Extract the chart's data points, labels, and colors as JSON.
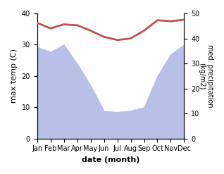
{
  "months": [
    "Jan",
    "Feb",
    "Mar",
    "Apr",
    "May",
    "Jun",
    "Jul",
    "Aug",
    "Sep",
    "Oct",
    "Nov",
    "Dec"
  ],
  "month_indices": [
    0,
    1,
    2,
    3,
    4,
    5,
    6,
    7,
    8,
    9,
    10,
    11
  ],
  "temperature": [
    37.0,
    35.2,
    36.5,
    36.2,
    34.5,
    32.5,
    31.5,
    32.0,
    34.5,
    37.8,
    37.5,
    38.0
  ],
  "precipitation": [
    190,
    180,
    195,
    155,
    110,
    57,
    55,
    58,
    65,
    130,
    175,
    195
  ],
  "temp_color": "#c0504d",
  "precip_fill_color": "#b8c0e8",
  "left_ylim": [
    0,
    40
  ],
  "right_ylim": [
    0,
    260
  ],
  "left_yticks": [
    0,
    10,
    20,
    30,
    40
  ],
  "right_yticks": [
    0,
    10,
    20,
    30,
    40,
    50
  ],
  "right_ytick_vals": [
    0,
    52,
    104,
    156,
    208,
    260
  ],
  "ylabel_left": "max temp (C)",
  "ylabel_right": "med. precipitation\n(kg/m2)",
  "xlabel": "date (month)",
  "figsize": [
    3.18,
    2.47
  ],
  "dpi": 100
}
